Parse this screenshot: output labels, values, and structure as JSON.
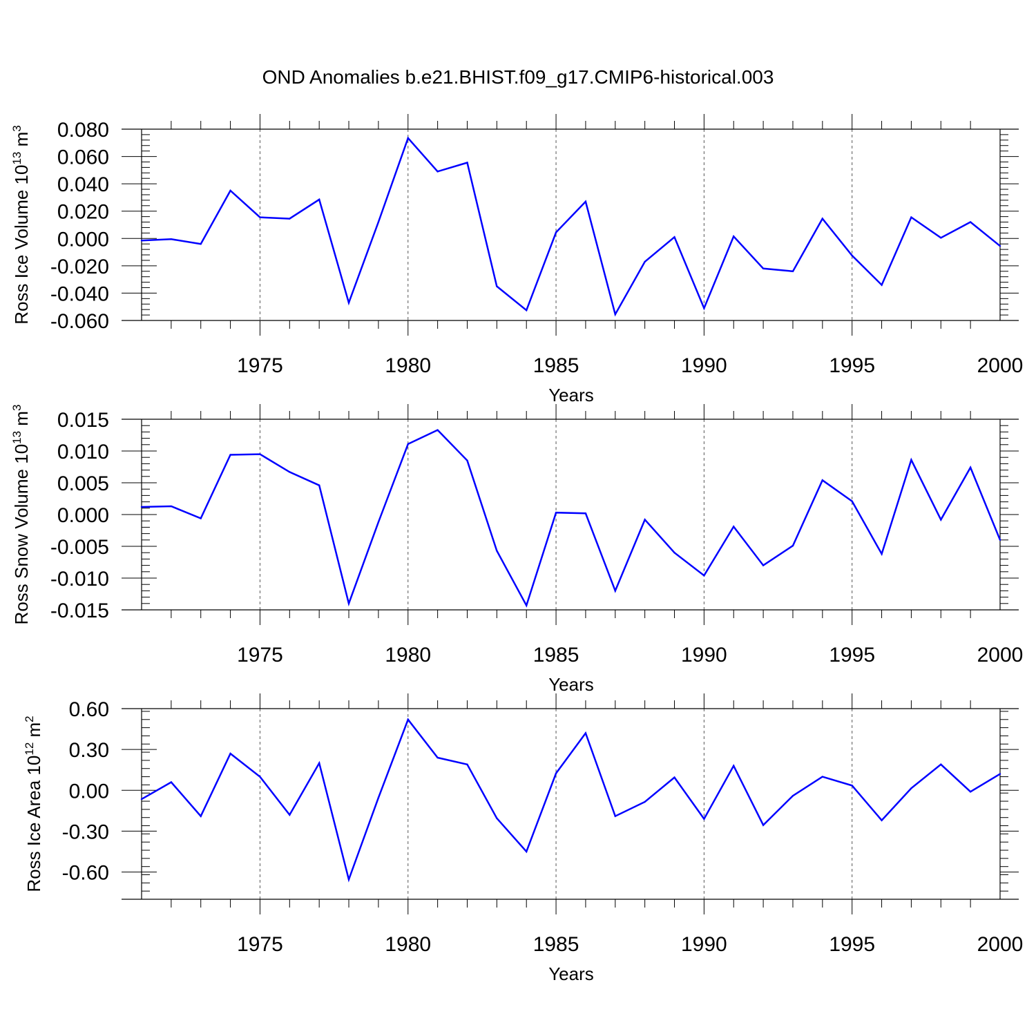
{
  "figure": {
    "title": "OND Anomalies b.e21.BHIST.f09_g17.CMIP6-historical.003",
    "line_color": "#0000ff"
  },
  "chart_data": [
    {
      "type": "line",
      "title": "",
      "xlabel": "Years",
      "ylabel": {
        "text": "Ross Ice Volume 10",
        "exp": "13",
        "unit": " m",
        "unit_exp": "3"
      },
      "xlim": [
        1971,
        2000
      ],
      "ylim": [
        -0.06,
        0.08
      ],
      "x_ticks": [
        1975,
        1980,
        1985,
        1990,
        1995,
        2000
      ],
      "y_ticks": [
        -0.06,
        -0.04,
        -0.02,
        0.0,
        0.02,
        0.04,
        0.06,
        0.08
      ],
      "y_tick_labels": [
        "-0.060",
        "-0.040",
        "-0.020",
        "0.000",
        "0.020",
        "0.040",
        "0.060",
        "0.080"
      ],
      "y_minor_step": 0.004,
      "x": [
        1971,
        1972,
        1973,
        1974,
        1975,
        1976,
        1977,
        1978,
        1979,
        1980,
        1981,
        1982,
        1983,
        1984,
        1985,
        1986,
        1987,
        1988,
        1989,
        1990,
        1991,
        1992,
        1993,
        1994,
        1995,
        1996,
        1997,
        1998,
        1999,
        2000
      ],
      "values": [
        -0.0015,
        -0.0005,
        -0.004,
        0.035,
        0.0155,
        0.0145,
        0.0285,
        -0.047,
        0.012,
        0.0735,
        0.049,
        0.0555,
        -0.035,
        -0.0525,
        0.0045,
        0.027,
        -0.0555,
        -0.017,
        0.001,
        -0.051,
        0.0015,
        -0.022,
        -0.024,
        0.0145,
        -0.0125,
        -0.034,
        0.0155,
        0.0005,
        0.012,
        -0.0055
      ],
      "grid": "vertical dashed at major x ticks"
    },
    {
      "type": "line",
      "title": "",
      "xlabel": "Years",
      "ylabel": {
        "text": "Ross Snow Volume 10",
        "exp": "13",
        "unit": " m",
        "unit_exp": "3"
      },
      "xlim": [
        1971,
        2000
      ],
      "ylim": [
        -0.015,
        0.015
      ],
      "x_ticks": [
        1975,
        1980,
        1985,
        1990,
        1995,
        2000
      ],
      "y_ticks": [
        -0.015,
        -0.01,
        -0.005,
        0.0,
        0.005,
        0.01,
        0.015
      ],
      "y_tick_labels": [
        "-0.015",
        "-0.010",
        "-0.005",
        "0.000",
        "0.005",
        "0.010",
        "0.015"
      ],
      "y_minor_step": 0.001,
      "x": [
        1971,
        1972,
        1973,
        1974,
        1975,
        1976,
        1977,
        1978,
        1979,
        1980,
        1981,
        1982,
        1983,
        1984,
        1985,
        1986,
        1987,
        1988,
        1989,
        1990,
        1991,
        1992,
        1993,
        1994,
        1995,
        1996,
        1997,
        1998,
        1999,
        2000
      ],
      "values": [
        0.0012,
        0.0013,
        -0.0006,
        0.0094,
        0.0095,
        0.0067,
        0.0046,
        -0.014,
        -0.0012,
        0.0111,
        0.0133,
        0.0085,
        -0.0057,
        -0.0143,
        0.0003,
        0.0002,
        -0.012,
        -0.0008,
        -0.006,
        -0.0096,
        -0.0019,
        -0.008,
        -0.0049,
        0.0054,
        0.0021,
        -0.0062,
        0.0086,
        -0.0008,
        0.0074,
        -0.004
      ],
      "grid": "vertical dashed at major x ticks"
    },
    {
      "type": "line",
      "title": "",
      "xlabel": "Years",
      "ylabel": {
        "text": "Ross Ice Area 10",
        "exp": "12",
        "unit": " m",
        "unit_exp": "2"
      },
      "xlim": [
        1971,
        2000
      ],
      "ylim": [
        -0.8,
        0.6
      ],
      "x_ticks": [
        1975,
        1980,
        1985,
        1990,
        1995,
        2000
      ],
      "y_ticks": [
        -0.6,
        -0.3,
        0.0,
        0.3,
        0.6
      ],
      "y_tick_labels": [
        "-0.60",
        "-0.30",
        "0.00",
        "0.30",
        "0.60"
      ],
      "y_minor_step": 0.06,
      "x": [
        1971,
        1972,
        1973,
        1974,
        1975,
        1976,
        1977,
        1978,
        1979,
        1980,
        1981,
        1982,
        1983,
        1984,
        1985,
        1986,
        1987,
        1988,
        1989,
        1990,
        1991,
        1992,
        1993,
        1994,
        1995,
        1996,
        1997,
        1998,
        1999,
        2000
      ],
      "values": [
        -0.065,
        0.06,
        -0.19,
        0.27,
        0.1,
        -0.18,
        0.2,
        -0.655,
        -0.055,
        0.52,
        0.24,
        0.19,
        -0.205,
        -0.45,
        0.125,
        0.42,
        -0.19,
        -0.085,
        0.095,
        -0.21,
        0.18,
        -0.255,
        -0.04,
        0.1,
        0.035,
        -0.22,
        0.015,
        0.19,
        -0.01,
        0.12
      ],
      "grid": "vertical dashed at major x ticks"
    }
  ]
}
